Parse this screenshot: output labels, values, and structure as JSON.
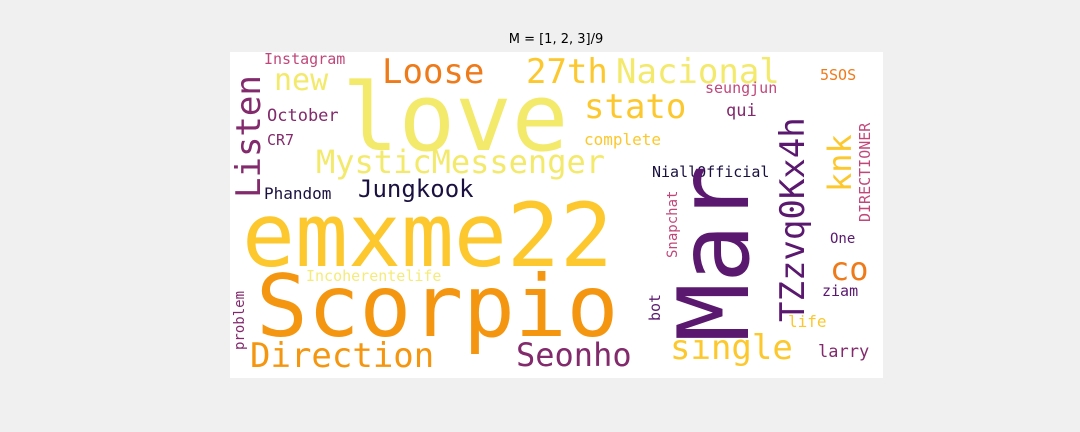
{
  "title": "M = [1, 2, 3]/9",
  "colors": {
    "background": "#f0f0f0",
    "canvas": "#ffffff",
    "palette": [
      "#f3e96b",
      "#fcc82d",
      "#f59610",
      "#ef7a1a",
      "#c1477a",
      "#822a6c",
      "#5a186e",
      "#1b1140"
    ]
  },
  "words": [
    "love",
    "Mar",
    "emxme22",
    "Scorpio",
    "Loose",
    "27th",
    "Nacional",
    "new",
    "stato",
    "Listen",
    "MysticMessenger",
    "Jungkook",
    "Phandom",
    "TZzvq0Kx4h",
    "knk",
    "co",
    "Direction",
    "Seonho",
    "single",
    "Instagram",
    "October",
    "CR7",
    "complete",
    "qui",
    "seungjun",
    "5SOS",
    "DIRECTIONER",
    "NiallOfficial",
    "Snapchat",
    "One",
    "ziam",
    "life",
    "larry",
    "bot",
    "problem",
    "Incoherentelife"
  ]
}
